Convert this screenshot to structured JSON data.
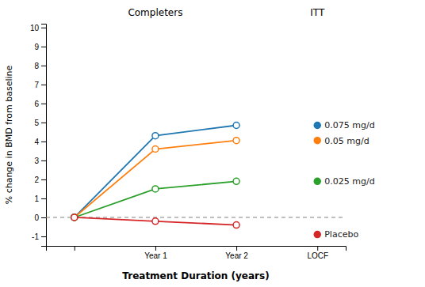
{
  "chart_data": {
    "type": "line",
    "xlabel": "Treatment Duration (years)",
    "ylabel": "% change in BMD from baseline",
    "categories": [
      null,
      "Year 1",
      "Year 2",
      "LOCF"
    ],
    "ylim": [
      -1.5,
      10.2
    ],
    "yticks": [
      -1,
      0,
      1,
      2,
      3,
      4,
      5,
      6,
      7,
      8,
      9,
      10
    ],
    "grid": false,
    "reference_lines": [
      {
        "y": 0,
        "line_style": "dashed"
      }
    ],
    "annotations": [
      {
        "text": "Completers"
      },
      {
        "text": "ITT"
      }
    ],
    "series": [
      {
        "type": "line",
        "marker": "open-circle",
        "values": [
          0,
          4.3,
          4.85,
          null
        ]
      },
      {
        "type": "line",
        "marker": "open-circle",
        "values": [
          0,
          3.6,
          4.05,
          null
        ]
      },
      {
        "type": "line",
        "marker": "open-circle",
        "values": [
          0,
          1.5,
          1.9,
          null
        ]
      },
      {
        "type": "line",
        "marker": "open-circle",
        "values": [
          0,
          -0.2,
          -0.4,
          null
        ]
      },
      {
        "type": "scatter",
        "marker": "circle",
        "name": "0.075 mg/d",
        "values": [
          null,
          null,
          null,
          4.85
        ]
      },
      {
        "type": "scatter",
        "marker": "circle",
        "name": "0.05 mg/d",
        "values": [
          null,
          null,
          null,
          4.05
        ]
      },
      {
        "type": "scatter",
        "marker": "circle",
        "name": "0.025 mg/d",
        "values": [
          null,
          null,
          null,
          1.9
        ]
      },
      {
        "type": "scatter",
        "marker": "circle",
        "name": "Placebo",
        "values": [
          null,
          null,
          null,
          -0.9
        ]
      }
    ]
  }
}
